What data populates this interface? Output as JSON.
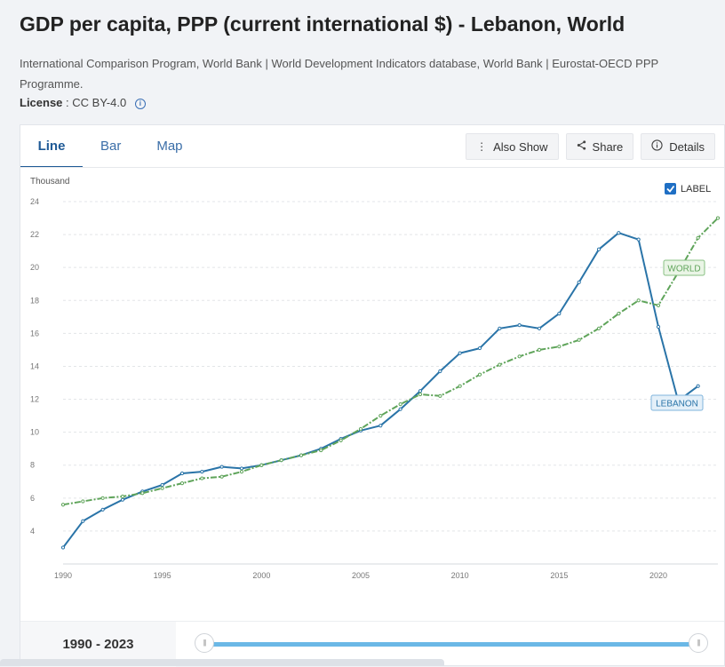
{
  "header": {
    "title": "GDP per capita, PPP (current international $) - Lebanon, World",
    "source": "International Comparison Program, World Bank | World Development Indicators database, World Bank | Eurostat-OECD PPP Programme.",
    "license_label": "License",
    "license_value": ": CC BY-4.0"
  },
  "tabs": [
    {
      "label": "Line",
      "active": true
    },
    {
      "label": "Bar",
      "active": false
    },
    {
      "label": "Map",
      "active": false
    }
  ],
  "actions": {
    "also_show": "Also Show",
    "share": "Share",
    "details": "Details"
  },
  "label_toggle": {
    "label": "LABEL",
    "checked": true
  },
  "range": {
    "text": "1990 - 2023"
  },
  "colors": {
    "lebanon": "#2a74a8",
    "world": "#5fa45a",
    "accent": "#1f5a96"
  },
  "chart_data": {
    "type": "line",
    "ylabel": "Thousand",
    "ylim": [
      2,
      24
    ],
    "yticks": [
      4,
      6,
      8,
      10,
      12,
      14,
      16,
      18,
      20,
      22,
      24
    ],
    "xlim": [
      1990,
      2023
    ],
    "xticks": [
      1990,
      1995,
      2000,
      2005,
      2010,
      2015,
      2020
    ],
    "grid": true,
    "series": [
      {
        "name": "LEBANON",
        "color": "#2a74a8",
        "dashed": false,
        "x": [
          1990,
          1991,
          1992,
          1993,
          1994,
          1995,
          1996,
          1997,
          1998,
          1999,
          2000,
          2001,
          2002,
          2003,
          2004,
          2005,
          2006,
          2007,
          2008,
          2009,
          2010,
          2011,
          2012,
          2013,
          2014,
          2015,
          2016,
          2017,
          2018,
          2019,
          2020,
          2021,
          2022
        ],
        "y": [
          3.0,
          4.6,
          5.3,
          5.9,
          6.4,
          6.8,
          7.5,
          7.6,
          7.9,
          7.8,
          8.0,
          8.3,
          8.6,
          9.0,
          9.6,
          10.1,
          10.4,
          11.4,
          12.5,
          13.7,
          14.8,
          15.1,
          16.3,
          16.5,
          16.3,
          17.2,
          19.1,
          21.1,
          22.1,
          21.7,
          16.4,
          11.9,
          12.8
        ]
      },
      {
        "name": "WORLD",
        "color": "#5fa45a",
        "dashed": true,
        "x": [
          1990,
          1991,
          1992,
          1993,
          1994,
          1995,
          1996,
          1997,
          1998,
          1999,
          2000,
          2001,
          2002,
          2003,
          2004,
          2005,
          2006,
          2007,
          2008,
          2009,
          2010,
          2011,
          2012,
          2013,
          2014,
          2015,
          2016,
          2017,
          2018,
          2019,
          2020,
          2021,
          2022,
          2023
        ],
        "y": [
          5.6,
          5.8,
          6.0,
          6.1,
          6.3,
          6.6,
          6.9,
          7.2,
          7.3,
          7.6,
          8.0,
          8.3,
          8.6,
          8.9,
          9.5,
          10.2,
          11.0,
          11.7,
          12.3,
          12.2,
          12.8,
          13.5,
          14.1,
          14.6,
          15.0,
          15.2,
          15.6,
          16.3,
          17.2,
          18.0,
          17.7,
          19.7,
          21.8,
          23.0
        ]
      }
    ]
  }
}
